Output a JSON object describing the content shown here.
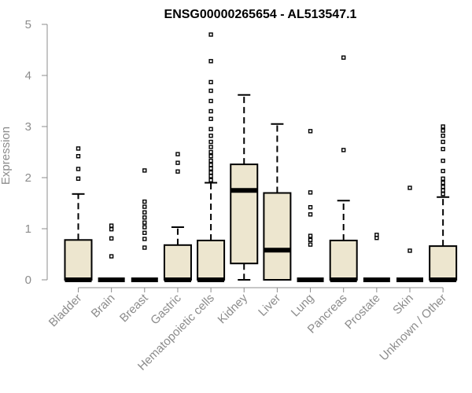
{
  "chart_data": {
    "type": "box",
    "title": "ENSG00000265654 - AL513547.1",
    "xlabel": "",
    "ylabel": "Expression",
    "ylim": [
      0,
      5
    ],
    "yticks": [
      0,
      1,
      2,
      3,
      4,
      5
    ],
    "box_fill": "#ede6cf",
    "axis_color": "#8c8c8c",
    "categories": [
      "Bladder",
      "Brain",
      "Breast",
      "Gastric",
      "Hematopoietic cells",
      "Kidney",
      "Liver",
      "Lung",
      "Pancreas",
      "Prostate",
      "Skin",
      "Unknown / Other"
    ],
    "boxes": [
      {
        "q1": 0,
        "median": 0,
        "q3": 0.78,
        "whisker_low": 0,
        "whisker_high": 1.68,
        "outliers": [
          1.98,
          2.17,
          2.42,
          2.57
        ]
      },
      {
        "q1": 0,
        "median": 0,
        "q3": 0,
        "whisker_low": 0,
        "whisker_high": 0,
        "outliers": [
          0.46,
          0.81,
          0.99,
          1.06
        ]
      },
      {
        "q1": 0,
        "median": 0,
        "q3": 0,
        "whisker_low": 0,
        "whisker_high": 0,
        "outliers": [
          0.63,
          0.8,
          0.92,
          1.03,
          1.12,
          1.22,
          1.32,
          1.43,
          1.53,
          2.14
        ]
      },
      {
        "q1": 0,
        "median": 0,
        "q3": 0.68,
        "whisker_low": 0,
        "whisker_high": 1.03,
        "outliers": [
          2.12,
          2.29,
          2.46
        ]
      },
      {
        "q1": 0,
        "median": 0,
        "q3": 0.77,
        "whisker_low": 0,
        "whisker_high": 1.9,
        "outliers": [
          1.95,
          2.03,
          2.1,
          2.18,
          2.25,
          2.33,
          2.42,
          2.5,
          2.6,
          2.7,
          2.82,
          2.95,
          3.15,
          3.3,
          3.5,
          3.7,
          3.87,
          4.28,
          4.8
        ]
      },
      {
        "q1": 0.32,
        "median": 1.75,
        "q3": 2.26,
        "whisker_low": 0,
        "whisker_high": 3.62,
        "outliers": []
      },
      {
        "q1": 0,
        "median": 0.58,
        "q3": 1.7,
        "whisker_low": 0,
        "whisker_high": 3.05,
        "outliers": []
      },
      {
        "q1": 0,
        "median": 0,
        "q3": 0,
        "whisker_low": 0,
        "whisker_high": 0,
        "outliers": [
          0.69,
          0.78,
          0.86,
          1.28,
          1.42,
          1.71,
          2.91
        ]
      },
      {
        "q1": 0,
        "median": 0,
        "q3": 0.77,
        "whisker_low": 0,
        "whisker_high": 1.55,
        "outliers": [
          2.54,
          4.35
        ]
      },
      {
        "q1": 0,
        "median": 0,
        "q3": 0,
        "whisker_low": 0,
        "whisker_high": 0,
        "outliers": [
          0.82,
          0.88
        ]
      },
      {
        "q1": 0,
        "median": 0,
        "q3": 0,
        "whisker_low": 0,
        "whisker_high": 0,
        "outliers": [
          0.57,
          1.8
        ]
      },
      {
        "q1": 0,
        "median": 0,
        "q3": 0.66,
        "whisker_low": 0,
        "whisker_high": 1.62,
        "outliers": [
          1.68,
          1.75,
          1.82,
          1.9,
          1.98,
          2.13,
          2.33,
          2.56,
          2.7,
          2.82,
          2.92,
          3.0
        ]
      }
    ]
  }
}
